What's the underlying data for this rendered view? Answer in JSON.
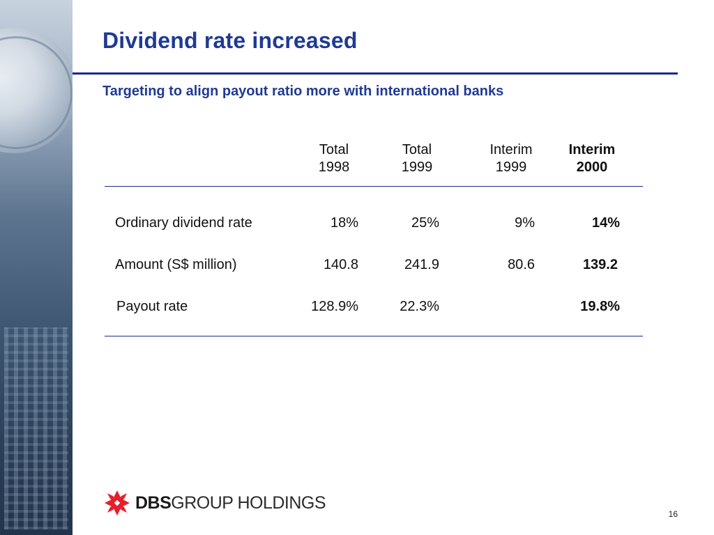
{
  "slide": {
    "title": "Dividend rate increased",
    "subtitle": "Targeting to align payout ratio more with international banks",
    "page_number": "16"
  },
  "table": {
    "columns": [
      {
        "line1": "Total",
        "line2": "1998",
        "bold": false
      },
      {
        "line1": "Total",
        "line2": "1999",
        "bold": false
      },
      {
        "line1": "Interim",
        "line2": "1999",
        "bold": false
      },
      {
        "line1": "Interim",
        "line2": "2000",
        "bold": true
      }
    ],
    "rows": [
      {
        "label": "Ordinary dividend rate",
        "values": [
          "18%",
          "25%",
          "9%",
          "14%"
        ]
      },
      {
        "label": "Amount (S$ million)",
        "values": [
          "140.8",
          "241.9",
          "80.6",
          "139.2"
        ]
      },
      {
        "label": "Payout rate",
        "values": [
          "128.9%",
          "22.3%",
          "",
          "19.8%"
        ]
      }
    ]
  },
  "logo": {
    "brand": "DBS",
    "suffix": "GROUP HOLDINGS",
    "mark_color": "#e4212b"
  },
  "colors": {
    "title": "#1f3a93",
    "rule": "#1a2a8c"
  }
}
